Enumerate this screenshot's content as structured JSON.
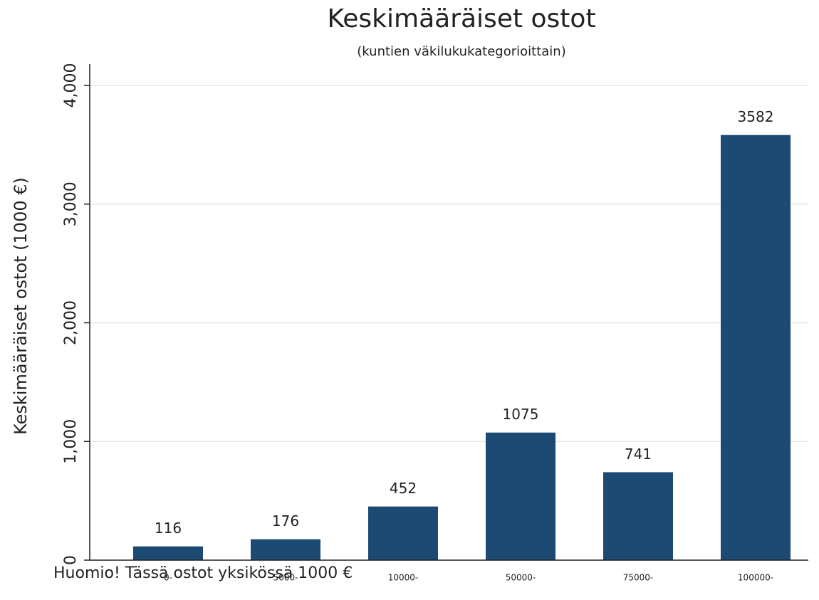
{
  "chart_data": {
    "type": "bar",
    "title": "Keskimääräiset ostot",
    "subtitle": "(kuntien väkilukukategorioittain)",
    "y_label": "Keskimääräiset ostot (1000 €)",
    "note": "Huomio! Tässä ostot yksikössä 1000 €",
    "categories": [
      "0-",
      "5000-",
      "10000-",
      "50000-",
      "75000-",
      "100000-"
    ],
    "values": [
      116,
      176,
      452,
      1075,
      741,
      3582
    ],
    "color": "#1c4a72",
    "ylim": [
      0,
      4180
    ],
    "yticks": [
      0,
      {
        "value": 1000,
        "label": "1,000"
      },
      {
        "value": 2000,
        "label": "2,000"
      },
      {
        "value": 3000,
        "label": "3,000"
      },
      {
        "value": 4000,
        "label": "4,000"
      }
    ],
    "grid": true
  }
}
